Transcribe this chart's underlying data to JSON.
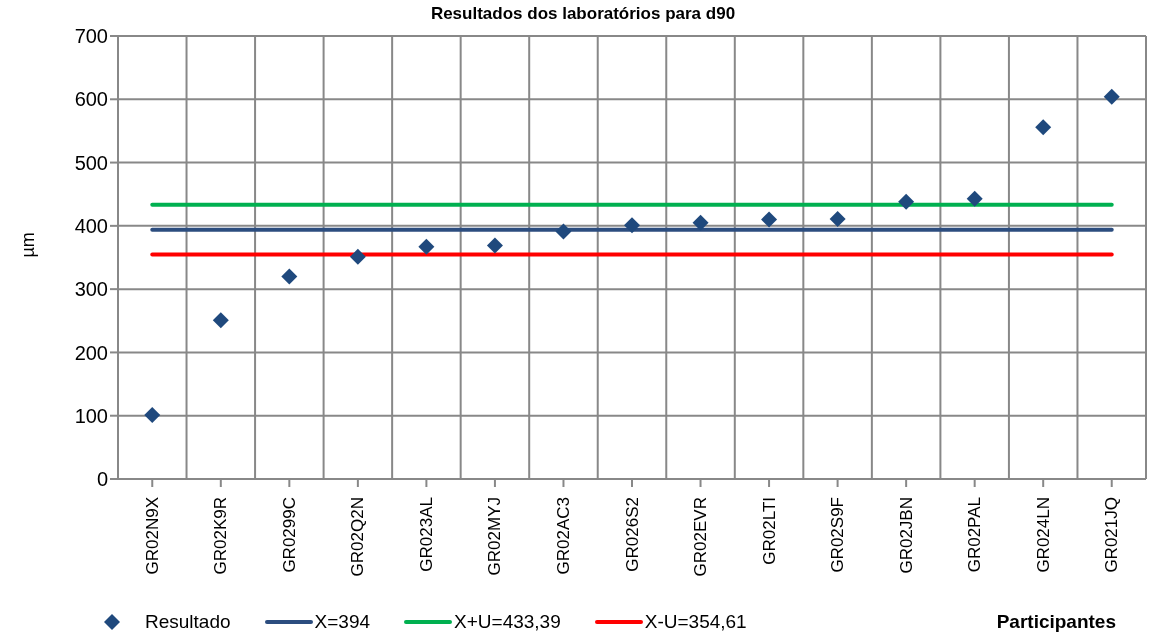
{
  "chart_data": {
    "type": "scatter",
    "title": "Resultados dos laboratórios para d90",
    "xlabel": "Participantes",
    "ylabel": "µm",
    "categories": [
      "GR02N9X",
      "GR02K9R",
      "GR0299C",
      "GR02Q2N",
      "GR023AL",
      "GR02MYJ",
      "GR02AC3",
      "GR026S2",
      "GR02EVR",
      "GR02LTI",
      "GR02S9F",
      "GR02JBN",
      "GR02PAL",
      "GR024LN",
      "GR021JQ"
    ],
    "series": [
      {
        "name": "Resultado",
        "marker": "diamond",
        "color": "#1f497d",
        "values": [
          101,
          251,
          320,
          351,
          367,
          369,
          391,
          401,
          405,
          410,
          411,
          438,
          443,
          556,
          604
        ]
      },
      {
        "name": "X=394",
        "type": "line",
        "color": "#2c4d7f",
        "values": [
          394,
          394,
          394,
          394,
          394,
          394,
          394,
          394,
          394,
          394,
          394,
          394,
          394,
          394,
          394
        ]
      },
      {
        "name": "X+U=433,39",
        "type": "line",
        "color": "#00b050",
        "values": [
          433.39,
          433.39,
          433.39,
          433.39,
          433.39,
          433.39,
          433.39,
          433.39,
          433.39,
          433.39,
          433.39,
          433.39,
          433.39,
          433.39,
          433.39
        ]
      },
      {
        "name": "X-U=354,61",
        "type": "line",
        "color": "#ff0000",
        "values": [
          354.61,
          354.61,
          354.61,
          354.61,
          354.61,
          354.61,
          354.61,
          354.61,
          354.61,
          354.61,
          354.61,
          354.61,
          354.61,
          354.61,
          354.61
        ]
      }
    ],
    "ylim": [
      0,
      700
    ],
    "yticks": [
      0,
      100,
      200,
      300,
      400,
      500,
      600,
      700
    ],
    "grid": true,
    "legend": "bottom",
    "line_style": "solid"
  }
}
